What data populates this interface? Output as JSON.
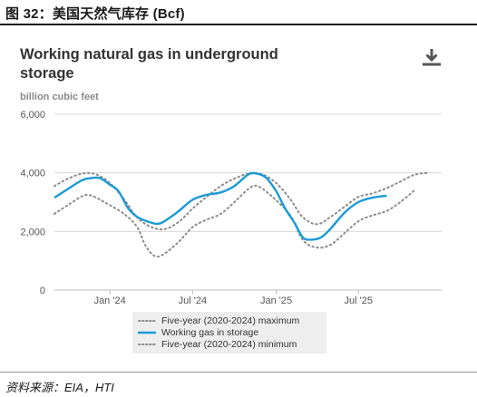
{
  "figure": {
    "caption": "图 32：美国天然气库存 (Bcf)",
    "source": "资料来源：EIA，HTI"
  },
  "icons": {
    "download": "download-icon"
  },
  "colors": {
    "working_gas": "#1a9ad6",
    "band": "#8c8c8c",
    "grid": "#d9d9d9",
    "axis_text": "#555555",
    "legend_bg": "#eeeeee"
  },
  "chart_data": {
    "type": "line",
    "title": "Working natural gas in underground storage",
    "ylabel": "billion cubic feet",
    "xlabel": "",
    "ylim": [
      0,
      6000
    ],
    "xlim": [
      "2023-09-01",
      "2025-12-31"
    ],
    "y_ticks": [
      "0",
      "2,000",
      "4,000",
      "6,000"
    ],
    "y_tick_values": [
      0,
      2000,
      4000,
      6000
    ],
    "x_ticks": [
      {
        "label": "Jan '24",
        "date": "2024-01-01"
      },
      {
        "label": "Jul '24",
        "date": "2024-07-01"
      },
      {
        "label": "Jan '25",
        "date": "2025-01-01"
      },
      {
        "label": "Jul '25",
        "date": "2025-07-01"
      }
    ],
    "grid": true,
    "legend_position": "bottom",
    "series": [
      {
        "name": "Five-year (2020-2024) maximum",
        "style": "dotted",
        "points": [
          [
            "2023-09-01",
            3550
          ],
          [
            "2023-10-01",
            3800
          ],
          [
            "2023-11-01",
            3970
          ],
          [
            "2023-12-01",
            3950
          ],
          [
            "2024-01-01",
            3650
          ],
          [
            "2024-02-01",
            3100
          ],
          [
            "2024-03-01",
            2480
          ],
          [
            "2024-04-01",
            2150
          ],
          [
            "2024-05-01",
            2080
          ],
          [
            "2024-06-01",
            2330
          ],
          [
            "2024-07-01",
            2780
          ],
          [
            "2024-08-01",
            3180
          ],
          [
            "2024-09-01",
            3550
          ],
          [
            "2024-10-01",
            3800
          ],
          [
            "2024-11-01",
            3970
          ],
          [
            "2024-12-01",
            3950
          ],
          [
            "2025-01-01",
            3650
          ],
          [
            "2025-02-01",
            3100
          ],
          [
            "2025-03-01",
            2480
          ],
          [
            "2025-04-01",
            2250
          ],
          [
            "2025-05-01",
            2500
          ],
          [
            "2025-06-01",
            2850
          ],
          [
            "2025-07-01",
            3180
          ],
          [
            "2025-08-01",
            3300
          ],
          [
            "2025-09-01",
            3480
          ],
          [
            "2025-10-01",
            3700
          ],
          [
            "2025-11-01",
            3930
          ],
          [
            "2025-12-01",
            4000
          ]
        ]
      },
      {
        "name": "Working gas in storage",
        "style": "solid",
        "points": [
          [
            "2023-09-01",
            3150
          ],
          [
            "2023-10-01",
            3450
          ],
          [
            "2023-11-01",
            3750
          ],
          [
            "2023-11-20",
            3820
          ],
          [
            "2023-12-10",
            3820
          ],
          [
            "2024-01-01",
            3600
          ],
          [
            "2024-01-20",
            3370
          ],
          [
            "2024-02-10",
            2800
          ],
          [
            "2024-03-01",
            2500
          ],
          [
            "2024-04-01",
            2300
          ],
          [
            "2024-04-20",
            2270
          ],
          [
            "2024-05-10",
            2450
          ],
          [
            "2024-06-01",
            2700
          ],
          [
            "2024-07-01",
            3080
          ],
          [
            "2024-08-01",
            3250
          ],
          [
            "2024-09-01",
            3330
          ],
          [
            "2024-10-01",
            3550
          ],
          [
            "2024-11-01",
            3950
          ],
          [
            "2024-11-20",
            3970
          ],
          [
            "2024-12-10",
            3830
          ],
          [
            "2025-01-01",
            3370
          ],
          [
            "2025-01-20",
            2800
          ],
          [
            "2025-02-10",
            2300
          ],
          [
            "2025-03-01",
            1790
          ],
          [
            "2025-03-20",
            1720
          ],
          [
            "2025-04-10",
            1800
          ],
          [
            "2025-05-01",
            2100
          ],
          [
            "2025-06-01",
            2650
          ],
          [
            "2025-07-01",
            3000
          ],
          [
            "2025-08-01",
            3150
          ],
          [
            "2025-09-01",
            3220
          ]
        ]
      },
      {
        "name": "Five-year (2020-2024) minimum",
        "style": "dotted",
        "points": [
          [
            "2023-09-01",
            2600
          ],
          [
            "2023-10-01",
            2900
          ],
          [
            "2023-11-01",
            3200
          ],
          [
            "2023-11-20",
            3230
          ],
          [
            "2023-12-20",
            3000
          ],
          [
            "2024-02-01",
            2600
          ],
          [
            "2024-03-01",
            2150
          ],
          [
            "2024-03-20",
            1500
          ],
          [
            "2024-04-10",
            1150
          ],
          [
            "2024-05-01",
            1250
          ],
          [
            "2024-06-01",
            1650
          ],
          [
            "2024-07-01",
            2150
          ],
          [
            "2024-08-01",
            2400
          ],
          [
            "2024-09-01",
            2600
          ],
          [
            "2024-10-01",
            3000
          ],
          [
            "2024-11-01",
            3450
          ],
          [
            "2024-11-20",
            3550
          ],
          [
            "2024-12-20",
            3230
          ],
          [
            "2025-02-01",
            2550
          ],
          [
            "2025-03-01",
            1700
          ],
          [
            "2025-04-01",
            1450
          ],
          [
            "2025-05-01",
            1550
          ],
          [
            "2025-06-01",
            1950
          ],
          [
            "2025-07-01",
            2350
          ],
          [
            "2025-08-01",
            2550
          ],
          [
            "2025-09-01",
            2700
          ],
          [
            "2025-10-01",
            3000
          ],
          [
            "2025-11-01",
            3400
          ]
        ]
      }
    ]
  }
}
